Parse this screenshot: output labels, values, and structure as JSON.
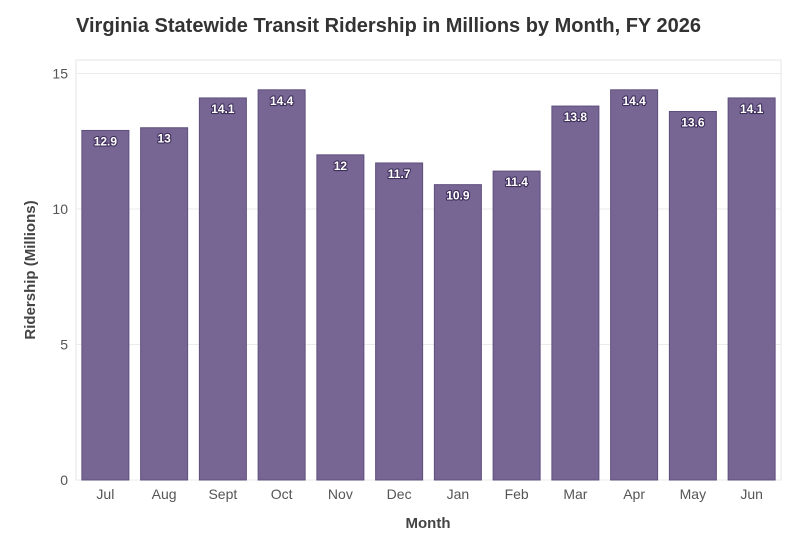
{
  "chart_data": {
    "type": "bar",
    "title": "Virginia Statewide Transit Ridership in Millions by Month, FY 2026",
    "xlabel": "Month",
    "ylabel": "Ridership (Millions)",
    "categories": [
      "Jul",
      "Aug",
      "Sept",
      "Oct",
      "Nov",
      "Dec",
      "Jan",
      "Feb",
      "Mar",
      "Apr",
      "May",
      "Jun"
    ],
    "values": [
      12.9,
      13,
      14.1,
      14.4,
      12,
      11.7,
      10.9,
      11.4,
      13.8,
      14.4,
      13.6,
      14.1
    ],
    "data_labels": [
      "12.9",
      "13",
      "14.1",
      "14.4",
      "12",
      "11.7",
      "10.9",
      "11.4",
      "13.8",
      "14.4",
      "13.6",
      "14.1"
    ],
    "ylim": [
      0,
      15.5
    ],
    "yticks": [
      0,
      5,
      10,
      15
    ],
    "ytick_labels": [
      "0",
      "5",
      "10",
      "15"
    ],
    "grid": true,
    "legend": false,
    "colors": {
      "bar": "#776694",
      "bar_edge": "#5f4f7d",
      "grid": "#ebebeb",
      "plot_border": "#e6e6e6"
    }
  }
}
